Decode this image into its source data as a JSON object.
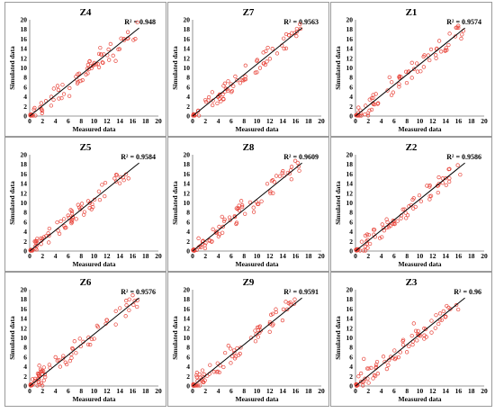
{
  "chart_data": [
    {
      "type": "scatter",
      "title": "Z4",
      "r2_label": "R² = 0.948",
      "xlabel": "Measured data",
      "ylabel": "Simulated data",
      "xlim": [
        0,
        20
      ],
      "ylim": [
        0,
        20
      ],
      "ticks": [
        "0",
        "2",
        "4",
        "6",
        "8",
        "10",
        "12",
        "14",
        "16",
        "18",
        "20"
      ],
      "fit_line": [
        [
          0,
          0
        ],
        [
          17,
          18.3
        ]
      ],
      "seed": 11
    },
    {
      "type": "scatter",
      "title": "Z7",
      "r2_label": "R² = 0.9563",
      "xlabel": "Measured data",
      "ylabel": "Simulated data",
      "xlim": [
        0,
        20
      ],
      "ylim": [
        0,
        20
      ],
      "ticks": [
        "0",
        "2",
        "4",
        "6",
        "8",
        "10",
        "12",
        "14",
        "16",
        "18",
        "20"
      ],
      "fit_line": [
        [
          0,
          0
        ],
        [
          17,
          18.3
        ]
      ],
      "seed": 12
    },
    {
      "type": "scatter",
      "title": "Z1",
      "r2_label": "R² = 0.9574",
      "xlabel": "Measured data",
      "ylabel": "Simulated data",
      "xlim": [
        0,
        20
      ],
      "ylim": [
        0,
        20
      ],
      "ticks": [
        "0",
        "2",
        "4",
        "6",
        "8",
        "10",
        "12",
        "14",
        "16",
        "18",
        "20"
      ],
      "fit_line": [
        [
          0,
          0
        ],
        [
          17,
          18.3
        ]
      ],
      "seed": 13
    },
    {
      "type": "scatter",
      "title": "Z5",
      "r2_label": "R² = 0.9584",
      "xlabel": "Measured data",
      "ylabel": "Simulated data",
      "xlim": [
        0,
        20
      ],
      "ylim": [
        0,
        20
      ],
      "ticks": [
        "0",
        "2",
        "4",
        "6",
        "8",
        "10",
        "12",
        "14",
        "16",
        "18",
        "20"
      ],
      "fit_line": [
        [
          0,
          0
        ],
        [
          17,
          18.3
        ]
      ],
      "seed": 14
    },
    {
      "type": "scatter",
      "title": "Z8",
      "r2_label": "R² = 0.9609",
      "xlabel": "Measured data",
      "ylabel": "Simulated data",
      "xlim": [
        0,
        20
      ],
      "ylim": [
        0,
        20
      ],
      "ticks": [
        "0",
        "2",
        "4",
        "6",
        "8",
        "10",
        "12",
        "14",
        "16",
        "18",
        "20"
      ],
      "fit_line": [
        [
          0,
          0
        ],
        [
          17,
          18.3
        ]
      ],
      "seed": 15
    },
    {
      "type": "scatter",
      "title": "Z2",
      "r2_label": "R² = 0.9586",
      "xlabel": "Measured data",
      "ylabel": "Simulated data",
      "xlim": [
        0,
        20
      ],
      "ylim": [
        0,
        20
      ],
      "ticks": [
        "0",
        "2",
        "4",
        "6",
        "8",
        "10",
        "12",
        "14",
        "16",
        "18",
        "20"
      ],
      "fit_line": [
        [
          0,
          0
        ],
        [
          17,
          18.3
        ]
      ],
      "seed": 16
    },
    {
      "type": "scatter",
      "title": "Z6",
      "r2_label": "R² = 0.9576",
      "xlabel": "Measured data",
      "ylabel": "Simulated data",
      "xlim": [
        0,
        20
      ],
      "ylim": [
        0,
        20
      ],
      "ticks": [
        "0",
        "2",
        "4",
        "6",
        "8",
        "10",
        "12",
        "14",
        "16",
        "18",
        "20"
      ],
      "fit_line": [
        [
          0,
          0
        ],
        [
          17,
          18.3
        ]
      ],
      "seed": 17
    },
    {
      "type": "scatter",
      "title": "Z9",
      "r2_label": "R² = 0.9591",
      "xlabel": "Measured data",
      "ylabel": "Simulated data",
      "xlim": [
        0,
        20
      ],
      "ylim": [
        0,
        20
      ],
      "ticks": [
        "0",
        "2",
        "4",
        "6",
        "8",
        "10",
        "12",
        "14",
        "16",
        "18",
        "20"
      ],
      "fit_line": [
        [
          0,
          0
        ],
        [
          17,
          18.3
        ]
      ],
      "seed": 18
    },
    {
      "type": "scatter",
      "title": "Z3",
      "r2_label": "R² = 0.96",
      "xlabel": "Measured data",
      "ylabel": "Simulated data",
      "xlim": [
        0,
        20
      ],
      "ylim": [
        0,
        20
      ],
      "ticks": [
        "0",
        "2",
        "4",
        "6",
        "8",
        "10",
        "12",
        "14",
        "16",
        "18",
        "20"
      ],
      "fit_line": [
        [
          0,
          0
        ],
        [
          17,
          18.3
        ]
      ],
      "seed": 19
    }
  ],
  "colors": {
    "marker": "#e8443a",
    "fit_line": "#000000",
    "frame": "#9a9a9a",
    "axis": "#777777"
  }
}
